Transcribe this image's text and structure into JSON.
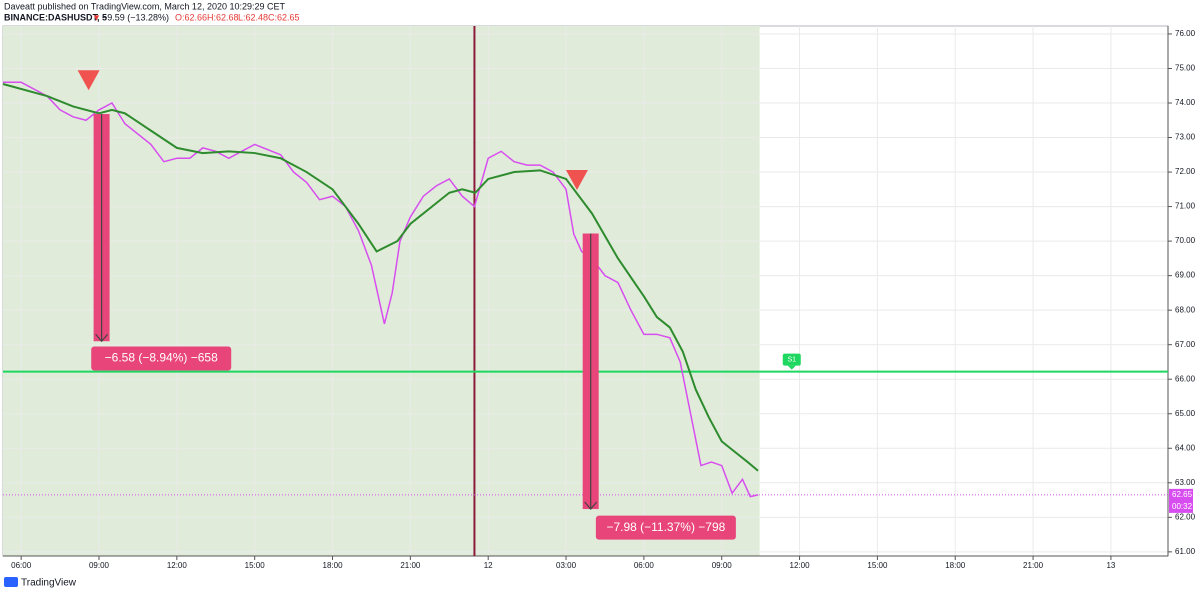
{
  "header": {
    "line1": "Daveatt published on TradingView.com, March 12, 2020 10:29:29 CET",
    "symbol": "BINANCE:DASHUSDT, 5",
    "arrow": "▼",
    "change": "−9.59 (−13.28%)",
    "open": "O:62.66",
    "high": "H:62.68",
    "low": "L:62.48",
    "close": "C:62.65"
  },
  "footer": {
    "brand": "TradingView"
  },
  "chart_data": {
    "type": "line",
    "xlim": [
      5.3,
      50.2
    ],
    "ylim": [
      60.88,
      76.23
    ],
    "xticks": [
      {
        "value": 6,
        "label": "06:00"
      },
      {
        "value": 9,
        "label": "09:00"
      },
      {
        "value": 12,
        "label": "12:00"
      },
      {
        "value": 15,
        "label": "15:00"
      },
      {
        "value": 18,
        "label": "18:00"
      },
      {
        "value": 21,
        "label": "21:00"
      },
      {
        "value": 24,
        "label": "12"
      },
      {
        "value": 27,
        "label": "03:00"
      },
      {
        "value": 30,
        "label": "06:00"
      },
      {
        "value": 33,
        "label": "09:00"
      },
      {
        "value": 36,
        "label": "12:00"
      },
      {
        "value": 39,
        "label": "15:00"
      },
      {
        "value": 42,
        "label": "18:00"
      },
      {
        "value": 45,
        "label": "21:00"
      },
      {
        "value": 48,
        "label": "13"
      }
    ],
    "yticks": [
      {
        "value": 61,
        "label": "61.00"
      },
      {
        "value": 62,
        "label": "62.00"
      },
      {
        "value": 63,
        "label": "63.00"
      },
      {
        "value": 64,
        "label": "64.00"
      },
      {
        "value": 65,
        "label": "65.00"
      },
      {
        "value": 66,
        "label": "66.00"
      },
      {
        "value": 67,
        "label": "67.00"
      },
      {
        "value": 68,
        "label": "68.00"
      },
      {
        "value": 69,
        "label": "69.00"
      },
      {
        "value": 70,
        "label": "70.00"
      },
      {
        "value": 71,
        "label": "71.00"
      },
      {
        "value": 72,
        "label": "72.00"
      },
      {
        "value": 73,
        "label": "73.00"
      },
      {
        "value": 74,
        "label": "74.00"
      },
      {
        "value": 75,
        "label": "75.00"
      },
      {
        "value": 76,
        "label": "76.00"
      }
    ],
    "grid": true,
    "session_end": 34.46,
    "session_color": "#e0ecd9",
    "divider_x": 23.47,
    "series": [
      {
        "color": "#d84df0",
        "x": [
          5.3,
          6,
          7,
          7.5,
          8,
          8.5,
          9,
          9.5,
          10,
          11,
          11.5,
          12,
          12.5,
          13,
          13.5,
          14,
          14.5,
          15,
          16,
          16.5,
          17,
          17.5,
          18,
          18.5,
          19,
          19.5,
          20,
          20.3,
          20.6,
          21,
          21.5,
          22,
          22.5,
          23,
          23.47,
          24,
          24.5,
          25,
          25.5,
          26,
          26.5,
          27,
          27.3,
          27.6,
          28,
          28.5,
          29,
          29.5,
          30,
          30.5,
          31,
          31.4,
          31.8,
          32.2,
          32.6,
          33,
          33.4,
          33.8,
          34.1,
          34.4
        ],
        "values": [
          74.6,
          74.6,
          74.2,
          73.8,
          73.6,
          73.5,
          73.8,
          74.0,
          73.4,
          72.8,
          72.3,
          72.4,
          72.4,
          72.7,
          72.6,
          72.4,
          72.6,
          72.8,
          72.5,
          72.0,
          71.7,
          71.2,
          71.3,
          71.0,
          70.3,
          69.3,
          67.6,
          68.5,
          70.0,
          70.7,
          71.3,
          71.6,
          71.8,
          71.3,
          71.0,
          72.4,
          72.6,
          72.3,
          72.2,
          72.2,
          72.0,
          71.5,
          70.2,
          69.7,
          69.5,
          69.0,
          68.8,
          68.0,
          67.3,
          67.3,
          67.2,
          66.5,
          65.0,
          63.5,
          63.6,
          63.5,
          62.7,
          63.1,
          62.6,
          62.65
        ]
      },
      {
        "color": "#2e8b2e",
        "x": [
          5.3,
          7,
          8,
          9,
          9.5,
          10,
          11,
          12,
          13,
          14,
          15,
          16,
          17,
          18,
          19,
          19.7,
          20.5,
          21,
          22,
          22.5,
          23,
          23.5,
          24,
          25,
          26,
          27,
          28,
          29,
          30,
          30.5,
          31,
          31.5,
          32,
          32.5,
          33,
          33.5,
          34,
          34.4
        ],
        "values": [
          74.55,
          74.2,
          73.9,
          73.7,
          73.8,
          73.7,
          73.2,
          72.7,
          72.55,
          72.6,
          72.55,
          72.4,
          72.0,
          71.5,
          70.5,
          69.7,
          70.0,
          70.5,
          71.1,
          71.4,
          71.5,
          71.4,
          71.8,
          72.0,
          72.05,
          71.8,
          70.8,
          69.5,
          68.4,
          67.8,
          67.5,
          66.8,
          65.7,
          64.9,
          64.2,
          63.9,
          63.6,
          63.35
        ]
      }
    ],
    "level": {
      "value": 66.22,
      "color": "#1ed760",
      "label": "S1",
      "label_x": 35.7
    },
    "last_price": {
      "value": 62.65,
      "countdown": "00:32",
      "color": "#d84df0"
    },
    "signals": [
      {
        "x": 8.6,
        "y": 74.66
      },
      {
        "x": 27.42,
        "y": 71.77
      }
    ],
    "measures": [
      {
        "x": 9.1,
        "top": 73.68,
        "bottom": 67.1,
        "label": "−6.58 (−8.94%) −658",
        "label_x": 8.7,
        "label_y": 66.6
      },
      {
        "x": 27.95,
        "top": 70.22,
        "bottom": 62.24,
        "label": "−7.98 (−11.37%) −798",
        "label_x": 28.15,
        "label_y": 61.7
      }
    ]
  }
}
